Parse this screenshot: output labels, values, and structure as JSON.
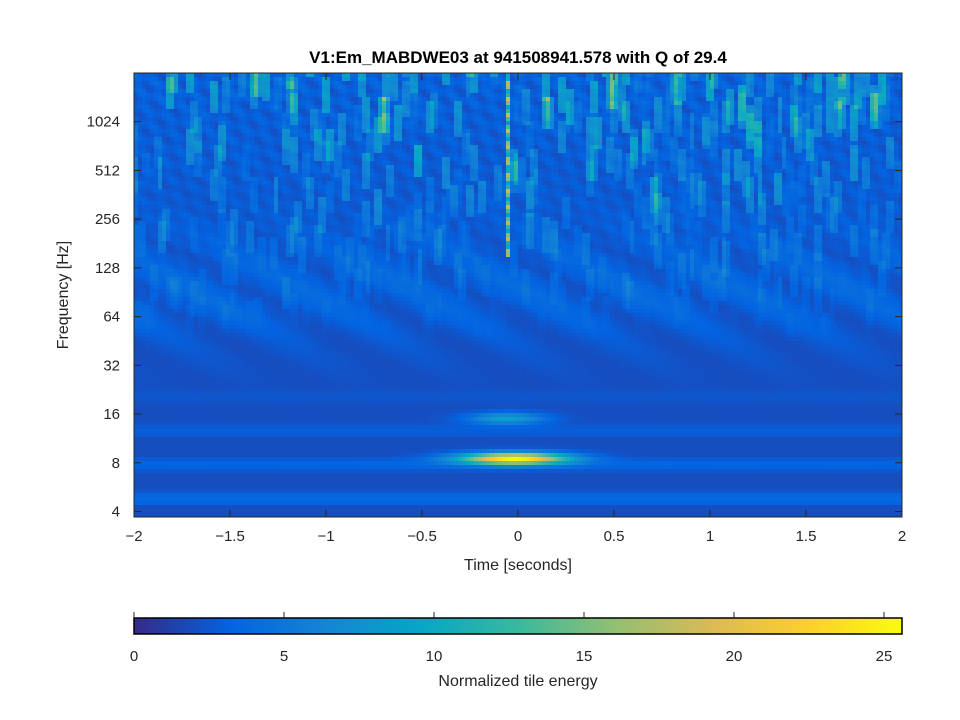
{
  "chart_data": {
    "type": "heatmap",
    "title": "V1:Em_MABDWE03 at 941508941.578 with Q of 29.4",
    "xlabel": "Time [seconds]",
    "ylabel": "Frequency [Hz]",
    "xlim": [
      -2,
      2
    ],
    "ylim": [
      3.7,
      2048
    ],
    "yscale": "log2",
    "xticks": [
      -2,
      -1.5,
      -1,
      -0.5,
      0,
      0.5,
      1,
      1.5,
      2
    ],
    "xtick_labels": [
      "−2",
      "−1.5",
      "−1",
      "−0.5",
      "0",
      "0.5",
      "1",
      "1.5",
      "2"
    ],
    "yticks": [
      4,
      8,
      16,
      32,
      64,
      128,
      256,
      512,
      1024
    ],
    "ytick_labels": [
      "4",
      "8",
      "16",
      "32",
      "64",
      "128",
      "256",
      "512",
      "1024"
    ],
    "background_energy": 2,
    "features": [
      {
        "name": "low-frequency blob",
        "t_center": -0.02,
        "f_center_hz": 8.5,
        "energy_peak": 25.5,
        "t_halfwidth_s": 0.28,
        "f_halfwidth_oct": 0.12
      },
      {
        "name": "16 Hz band",
        "t_center": -0.06,
        "f_center_hz": 15,
        "energy_peak": 9,
        "t_halfwidth_s": 0.2,
        "f_halfwidth_oct": 0.12
      },
      {
        "name": "vertical glitch line",
        "t_center": -0.05,
        "f_low_hz": 150,
        "f_high_hz": 2048,
        "energy_peak": 25
      }
    ],
    "colorbar": {
      "label": "Normalized tile energy",
      "range": [
        0,
        25.6
      ],
      "ticks": [
        0,
        5,
        10,
        15,
        20,
        25
      ],
      "tick_labels": [
        "0",
        "5",
        "10",
        "15",
        "20",
        "25"
      ],
      "colormap": "parula",
      "colors": [
        "#352a87",
        "#0363e1",
        "#1485d4",
        "#06a7c6",
        "#38b99e",
        "#92bf73",
        "#d9ba56",
        "#fcce2e",
        "#f9fb0e"
      ]
    }
  }
}
